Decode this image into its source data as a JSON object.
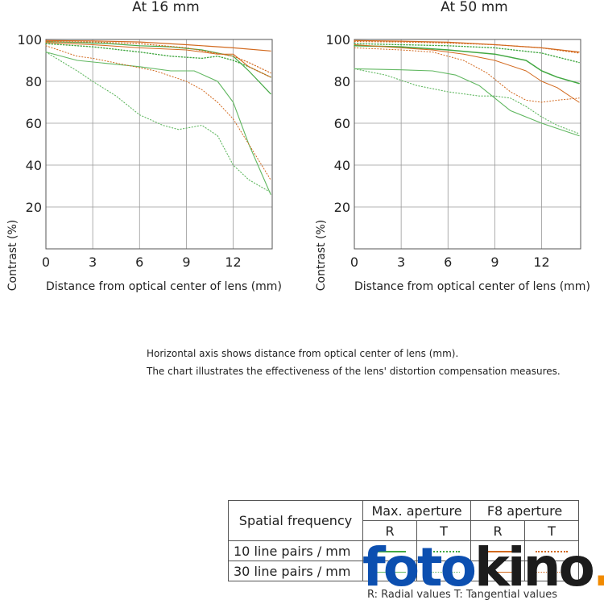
{
  "chart_data": [
    {
      "type": "line",
      "title": "At 16 mm",
      "xlabel": "Distance from optical center of lens (mm)",
      "ylabel": "Contrast (%)",
      "xlim": [
        0,
        14.5
      ],
      "ylim": [
        0,
        100
      ],
      "xticks": [
        0,
        3,
        6,
        9,
        12
      ],
      "yticks": [
        20,
        40,
        60,
        80,
        100
      ],
      "grid": true,
      "series": [
        {
          "key": "max_10_R",
          "color": "#43a843",
          "dash": "solid",
          "width": 1.2,
          "x": [
            0,
            2,
            4,
            6,
            8,
            10,
            12,
            13,
            14.4
          ],
          "y": [
            99,
            98.6,
            98,
            97,
            96.5,
            95,
            92,
            85,
            74
          ]
        },
        {
          "key": "max_10_T",
          "color": "#43a843",
          "dash": "dot",
          "width": 1.4,
          "x": [
            0,
            3,
            6,
            8,
            10,
            11,
            12,
            13,
            14.4
          ],
          "y": [
            98,
            96.5,
            94,
            92,
            91,
            92,
            90,
            87,
            82
          ]
        },
        {
          "key": "max_30_R",
          "color": "#62b862",
          "dash": "solid",
          "width": 1.1,
          "x": [
            0,
            2,
            4,
            6,
            8,
            9.5,
            11,
            12,
            13,
            14.4
          ],
          "y": [
            94,
            90,
            88.5,
            87,
            85,
            85,
            80,
            70,
            50,
            26
          ]
        },
        {
          "key": "max_30_T",
          "color": "#62b862",
          "dash": "dot",
          "width": 1.1,
          "x": [
            0,
            2,
            3,
            4.5,
            6,
            7.5,
            8.5,
            10,
            11,
            12,
            13,
            14.4
          ],
          "y": [
            94,
            85,
            80,
            73,
            64,
            59,
            57,
            59,
            54,
            40,
            33,
            27
          ]
        },
        {
          "key": "f8_10_R",
          "color": "#d2691e",
          "dash": "solid",
          "width": 1.2,
          "x": [
            0,
            3,
            6,
            9,
            12,
            14.4
          ],
          "y": [
            99.5,
            99.3,
            98.8,
            97.5,
            96,
            94.5
          ]
        },
        {
          "key": "f8_10_T",
          "color": "#d2691e",
          "dash": "dot",
          "width": 1.2,
          "x": [
            0,
            3,
            6,
            9,
            12,
            13,
            14.4
          ],
          "y": [
            99,
            98.8,
            98,
            96,
            92,
            89,
            84
          ]
        },
        {
          "key": "f8_30_R",
          "color": "#d2691e",
          "dash": "solid",
          "width": 1.0,
          "x": [
            0,
            3,
            6,
            9,
            11,
            12,
            13,
            14.4
          ],
          "y": [
            98.5,
            97.5,
            96,
            95,
            93,
            93,
            87,
            82
          ]
        },
        {
          "key": "f8_30_T",
          "color": "#d2691e",
          "dash": "dot",
          "width": 1.0,
          "x": [
            0,
            2,
            3,
            5,
            7,
            9,
            10,
            11,
            12,
            13,
            14.4
          ],
          "y": [
            97,
            92,
            91,
            88,
            85,
            80,
            76,
            70,
            62,
            50,
            33
          ]
        }
      ]
    },
    {
      "type": "line",
      "title": "At 50 mm",
      "xlabel": "Distance from optical center of lens (mm)",
      "ylabel": "Contrast (%)",
      "xlim": [
        0,
        14.5
      ],
      "ylim": [
        0,
        100
      ],
      "xticks": [
        0,
        3,
        6,
        9,
        12
      ],
      "yticks": [
        20,
        40,
        60,
        80,
        100
      ],
      "grid": true,
      "series": [
        {
          "key": "max_10_R",
          "color": "#43a843",
          "dash": "solid",
          "width": 1.5,
          "x": [
            0,
            3,
            6,
            9,
            11,
            12,
            13,
            14.4
          ],
          "y": [
            97,
            96.5,
            95,
            93,
            90,
            85,
            82,
            79
          ]
        },
        {
          "key": "max_10_T",
          "color": "#43a843",
          "dash": "dot",
          "width": 1.4,
          "x": [
            0,
            3,
            6,
            9,
            12,
            14.4
          ],
          "y": [
            98,
            97.5,
            97,
            96,
            93.5,
            89
          ]
        },
        {
          "key": "max_30_R",
          "color": "#62b862",
          "dash": "solid",
          "width": 1.1,
          "x": [
            0,
            3,
            5,
            6.5,
            8,
            9,
            10,
            12,
            14.4
          ],
          "y": [
            86,
            85.5,
            85,
            83,
            78,
            72,
            66,
            60,
            54
          ]
        },
        {
          "key": "max_30_T",
          "color": "#62b862",
          "dash": "dot",
          "width": 1.1,
          "x": [
            0,
            2,
            4,
            6,
            8,
            9,
            10,
            11,
            12,
            13,
            14.4
          ],
          "y": [
            86,
            83,
            78,
            75,
            73,
            73,
            72,
            68,
            63,
            59,
            55
          ]
        },
        {
          "key": "f8_10_R",
          "color": "#d2691e",
          "dash": "solid",
          "width": 1.2,
          "x": [
            0,
            3,
            6,
            9,
            12,
            14.4
          ],
          "y": [
            99.5,
            99.2,
            98.7,
            97.5,
            96,
            94
          ]
        },
        {
          "key": "f8_10_T",
          "color": "#d2691e",
          "dash": "dot",
          "width": 1.2,
          "x": [
            0,
            3,
            6,
            9,
            12,
            14.4
          ],
          "y": [
            99,
            98.8,
            98.3,
            97.5,
            96,
            93.5
          ]
        },
        {
          "key": "f8_30_R",
          "color": "#d2691e",
          "dash": "solid",
          "width": 1.0,
          "x": [
            0,
            3,
            5,
            7,
            9,
            11,
            12,
            13,
            14.4
          ],
          "y": [
            97.5,
            96,
            95,
            93,
            90,
            85,
            80,
            77,
            70
          ]
        },
        {
          "key": "f8_30_T",
          "color": "#d2691e",
          "dash": "dot",
          "width": 1.0,
          "x": [
            0,
            3,
            5,
            7,
            8.5,
            10,
            11,
            12,
            13,
            14.4
          ],
          "y": [
            96,
            95,
            94,
            90,
            84,
            75,
            71,
            70,
            71,
            72
          ]
        }
      ]
    }
  ],
  "caption": {
    "line1": "Horizontal axis shows distance from optical center of lens (mm).",
    "line2": "The chart illustrates the effectiveness of the lens' distortion compensation measures."
  },
  "legend": {
    "spatial_frequency": "Spatial frequency",
    "max_aperture": "Max. aperture",
    "f8_aperture": "F8 aperture",
    "r": "R",
    "t": "T",
    "row_10": "10 line pairs / mm",
    "row_30": "30 line pairs / mm",
    "green": "#43a843",
    "orange": "#d2691e",
    "footnote": "R: Radial values  T: Tangential values"
  },
  "logo": {
    "part1": "foto",
    "part2": "kino",
    "dot": "."
  }
}
